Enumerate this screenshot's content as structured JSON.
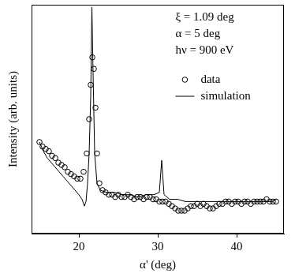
{
  "chart_data": {
    "type": "scatter",
    "x_label": "α' (deg)",
    "y_label": "Intensity (arb. units)",
    "annotations": [
      "ξ = 1.09 deg",
      "α = 5 deg",
      "hν = 900 eV"
    ],
    "xlim": [
      14,
      46
    ],
    "xticks": [
      20,
      30,
      40
    ],
    "ylim": [
      0,
      100
    ],
    "tick_labels": "x",
    "grid": false,
    "legend": "upper right",
    "series": [
      {
        "name": "data",
        "type": "scatter",
        "marker": "circle",
        "color": "#000000",
        "x": [
          15.0,
          15.4,
          15.8,
          16.2,
          16.6,
          17.0,
          17.4,
          17.8,
          18.2,
          18.6,
          19.0,
          19.4,
          19.8,
          20.2,
          20.6,
          21.0,
          21.3,
          21.5,
          21.7,
          21.9,
          22.1,
          22.3,
          22.6,
          23.0,
          23.4,
          23.8,
          24.2,
          24.6,
          25.0,
          25.4,
          25.8,
          26.2,
          26.6,
          27.0,
          27.4,
          27.8,
          28.2,
          28.6,
          29.0,
          29.4,
          29.8,
          30.2,
          30.6,
          31.0,
          31.4,
          31.8,
          32.2,
          32.6,
          33.0,
          33.4,
          33.8,
          34.2,
          34.6,
          35.0,
          35.4,
          35.8,
          36.2,
          36.6,
          37.0,
          37.4,
          37.8,
          38.2,
          38.6,
          39.0,
          39.4,
          39.8,
          40.2,
          40.6,
          41.0,
          41.4,
          41.8,
          42.2,
          42.6,
          43.0,
          43.4,
          43.8,
          44.2,
          44.6,
          45.0
        ],
        "values": [
          40,
          38,
          37,
          36,
          34,
          33,
          31,
          30,
          29,
          27,
          26,
          25,
          24,
          24,
          27,
          35,
          50,
          65,
          77,
          72,
          55,
          35,
          22,
          19,
          18,
          17,
          17,
          16,
          17,
          16,
          16,
          17,
          16,
          15,
          16,
          16,
          15,
          16,
          16,
          15,
          15,
          14,
          14,
          14,
          13,
          12,
          11,
          10,
          10,
          10,
          11,
          12,
          12,
          13,
          12,
          13,
          12,
          11,
          11,
          12,
          13,
          13,
          14,
          14,
          13,
          14,
          14,
          13,
          14,
          14,
          13,
          14,
          14,
          14,
          14,
          15,
          14,
          14,
          14
        ]
      },
      {
        "name": "simulation",
        "type": "line",
        "line_style": "solid",
        "color": "#000000",
        "x": [
          15.0,
          15.5,
          16.0,
          16.5,
          17.0,
          17.5,
          18.0,
          18.5,
          19.0,
          19.5,
          20.0,
          20.4,
          20.7,
          20.9,
          21.1,
          21.3,
          21.5,
          21.65,
          21.8,
          22.0,
          22.3,
          22.7,
          23.5,
          24.5,
          25.5,
          26.5,
          27.5,
          28.5,
          29.5,
          30.2,
          30.5,
          30.8,
          31.5,
          32.5,
          33.5,
          34.5,
          35.5,
          36.5,
          37.5,
          38.5,
          39.5,
          40.5,
          41.5,
          42.5,
          43.5,
          44.5,
          45.0
        ],
        "values": [
          40,
          36,
          33,
          31,
          29,
          27,
          25,
          23,
          21,
          19,
          17,
          15,
          12,
          14,
          22,
          35,
          60,
          99,
          70,
          35,
          22,
          19,
          18,
          18,
          17,
          17,
          16,
          17,
          17,
          18,
          32,
          17,
          15,
          15,
          14,
          14,
          14,
          14,
          14,
          14,
          14,
          14,
          14,
          14,
          14,
          14,
          15
        ]
      }
    ]
  }
}
